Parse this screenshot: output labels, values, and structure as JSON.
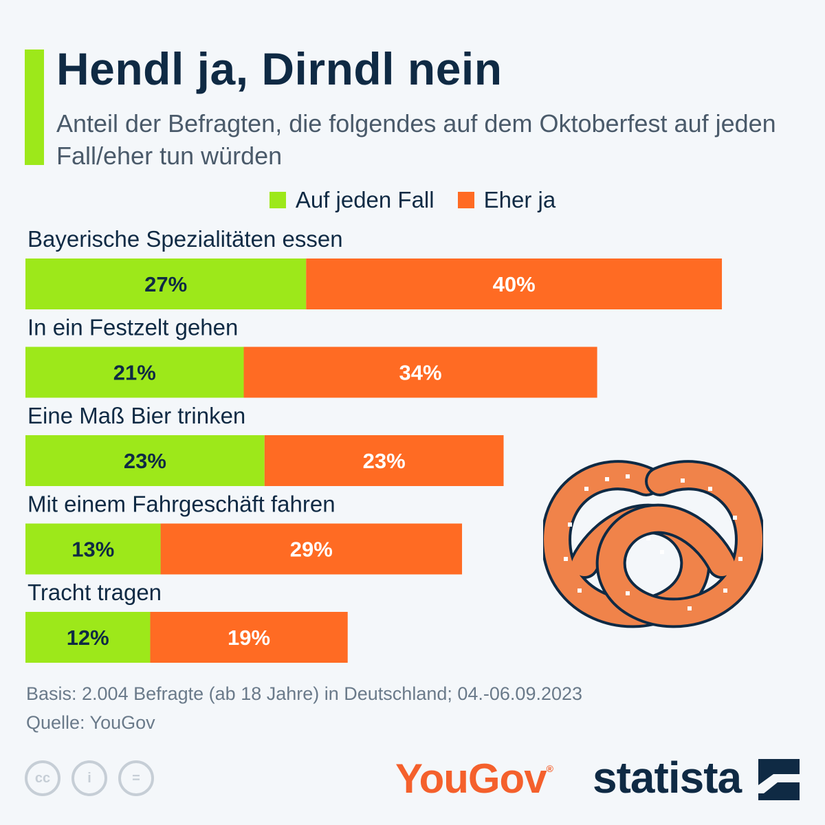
{
  "header": {
    "title": "Hendl ja, Dirndl nein",
    "subtitle": "Anteil der Befragten, die folgendes auf dem Oktoberfest auf jeden Fall/eher tun würden"
  },
  "colors": {
    "accent": "#9de81a",
    "series1": "#9de81a",
    "series2": "#ff6b23",
    "text": "#0f2a44"
  },
  "chart_data": {
    "type": "bar",
    "orientation": "horizontal",
    "stacked": true,
    "categories": [
      "Bayerische Spezialitäten essen",
      "In ein Festzelt gehen",
      "Eine Maß Bier trinken",
      "Mit einem Fahrgeschäft fahren",
      "Tracht tragen"
    ],
    "series": [
      {
        "name": "Auf jeden Fall",
        "values": [
          27,
          21,
          23,
          13,
          12
        ],
        "color": "#9de81a",
        "label_color": "#0f2a44"
      },
      {
        "name": "Eher ja",
        "values": [
          40,
          34,
          23,
          29,
          19
        ],
        "color": "#ff6b23",
        "label_color": "#ffffff"
      }
    ],
    "value_suffix": "%",
    "legend_position": "top-center",
    "grid": false
  },
  "footer": {
    "basis": "Basis: 2.004 Befragte (ab 18 Jahre) in Deutschland; 04.-06.09.2023",
    "source": "Quelle: YouGov",
    "yougov_logo": "YouGov",
    "yougov_mark": "®",
    "statista_logo": "statista",
    "cc_icons": [
      "cc",
      "i",
      "="
    ]
  }
}
